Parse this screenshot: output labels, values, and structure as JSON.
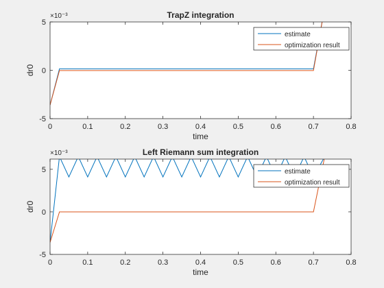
{
  "figure": {
    "background": "#f0f0f0"
  },
  "chart_data": [
    {
      "type": "line",
      "title": "TrapZ integration",
      "xlabel": "time",
      "ylabel": "dr0",
      "xlim": [
        0,
        0.8
      ],
      "ylim": [
        -0.005,
        0.005
      ],
      "xticks": [
        0,
        0.1,
        0.2,
        0.3,
        0.4,
        0.5,
        0.6,
        0.7,
        0.8
      ],
      "xtick_labels": [
        "0",
        "0.1",
        "0.2",
        "0.3",
        "0.4",
        "0.5",
        "0.6",
        "0.7",
        "0.8"
      ],
      "yticks": [
        -0.005,
        0,
        0.005
      ],
      "ytick_labels": [
        "-5",
        "0",
        "5"
      ],
      "exponent_label": "×10⁻³",
      "grid": false,
      "legend_position": "top-right",
      "series": [
        {
          "name": "estimate",
          "color": "#0072bd",
          "x": [
            0,
            0.025,
            0.7,
            0.73
          ],
          "y": [
            -0.0036,
            0.00015,
            0.00015,
            0.0065
          ]
        },
        {
          "name": "optimization result",
          "color": "#d95319",
          "x": [
            0,
            0.025,
            0.7,
            0.73
          ],
          "y": [
            -0.0036,
            -3e-05,
            -3e-05,
            0.0065
          ]
        }
      ]
    },
    {
      "type": "line",
      "title": "Left Riemann sum integration",
      "xlabel": "time",
      "ylabel": "dr0",
      "xlim": [
        0,
        0.8
      ],
      "ylim": [
        -0.005,
        0.0062
      ],
      "xticks": [
        0,
        0.1,
        0.2,
        0.3,
        0.4,
        0.5,
        0.6,
        0.7,
        0.8
      ],
      "xtick_labels": [
        "0",
        "0.1",
        "0.2",
        "0.3",
        "0.4",
        "0.5",
        "0.6",
        "0.7",
        "0.8"
      ],
      "yticks": [
        -0.005,
        0,
        0.005
      ],
      "ytick_labels": [
        "-5",
        "0",
        "5"
      ],
      "exponent_label": "×10⁻³",
      "grid": false,
      "legend_position": "top-right",
      "series": [
        {
          "name": "estimate",
          "color": "#0072bd",
          "x": [
            0,
            0.025,
            0.05,
            0.075,
            0.1,
            0.125,
            0.15,
            0.175,
            0.2,
            0.225,
            0.25,
            0.275,
            0.3,
            0.325,
            0.35,
            0.375,
            0.4,
            0.425,
            0.45,
            0.475,
            0.5,
            0.525,
            0.55,
            0.575,
            0.6,
            0.625,
            0.65,
            0.675,
            0.7,
            0.73
          ],
          "y": [
            -0.0036,
            0.0065,
            0.0041,
            0.0065,
            0.0041,
            0.0065,
            0.0041,
            0.0065,
            0.0041,
            0.0065,
            0.0041,
            0.0065,
            0.0041,
            0.0065,
            0.0041,
            0.0065,
            0.0041,
            0.0065,
            0.0041,
            0.0065,
            0.0041,
            0.0065,
            0.0041,
            0.0065,
            0.0041,
            0.0065,
            0.0041,
            0.0065,
            0.0041,
            0.0065
          ]
        },
        {
          "name": "optimization result",
          "color": "#d95319",
          "x": [
            0,
            0.025,
            0.7,
            0.73
          ],
          "y": [
            -0.0036,
            0,
            0,
            0.0065
          ]
        }
      ]
    }
  ]
}
